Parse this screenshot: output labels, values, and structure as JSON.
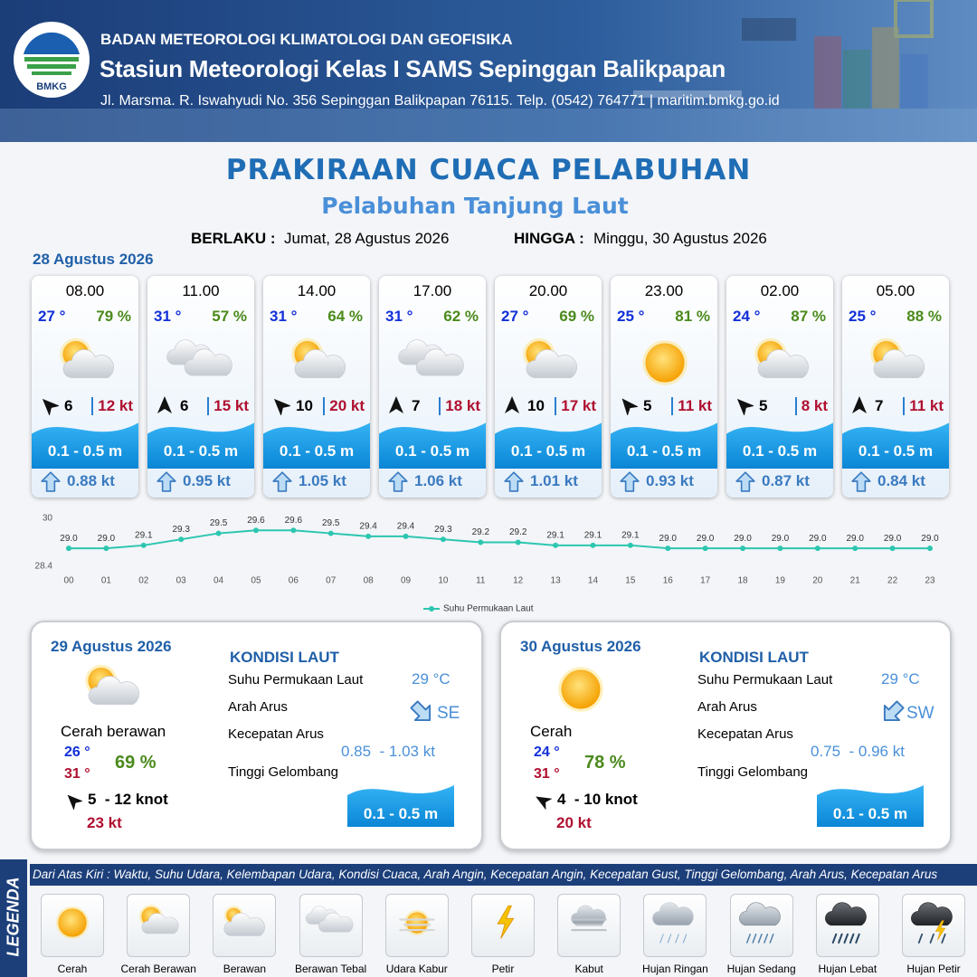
{
  "header": {
    "logo_text": "BMKG",
    "agency": "BADAN METEOROLOGI KLIMATOLOGI DAN GEOFISIKA",
    "station": "Stasiun Meteorologi Kelas I SAMS Sepinggan Balikpapan",
    "address": "Jl. Marsma. R. Iswahyudi No. 356 Sepinggan Balikpapan 76115. Telp. (0542) 764771 | maritim.bmkg.go.id"
  },
  "title": "PRAKIRAAN CUACA PELABUHAN",
  "subtitle": "Pelabuhan Tanjung Laut",
  "validity": {
    "from_label": "BERLAKU :",
    "from": "Jumat, 28 Agustus 2026",
    "to_label": "HINGGA :",
    "to": "Minggu, 30 Agustus 2026"
  },
  "day1": {
    "date": "28 Agustus 2026",
    "cards": [
      {
        "time": "08.00",
        "temp": "27 °",
        "humidity": "79 %",
        "icon": "cerah-berawan",
        "wind_direction": 315,
        "wind_speed": 6,
        "gust": "12 kt",
        "wave": "0.1 - 0.5 m",
        "current": "0.88 kt"
      },
      {
        "time": "11.00",
        "temp": "31 °",
        "humidity": "57 %",
        "icon": "berawan-tebal",
        "wind_direction": 0,
        "wind_speed": 6,
        "gust": "15 kt",
        "wave": "0.1 - 0.5 m",
        "current": "0.95 kt"
      },
      {
        "time": "14.00",
        "temp": "31 °",
        "humidity": "64 %",
        "icon": "cerah-berawan",
        "wind_direction": 315,
        "wind_speed": 10,
        "gust": "20 kt",
        "wave": "0.1 - 0.5 m",
        "current": "1.05 kt"
      },
      {
        "time": "17.00",
        "temp": "31 °",
        "humidity": "62 %",
        "icon": "berawan-tebal",
        "wind_direction": 0,
        "wind_speed": 7,
        "gust": "18 kt",
        "wave": "0.1 - 0.5 m",
        "current": "1.06 kt"
      },
      {
        "time": "20.00",
        "temp": "27 °",
        "humidity": "69 %",
        "icon": "cerah-berawan",
        "wind_direction": 0,
        "wind_speed": 10,
        "gust": "17 kt",
        "wave": "0.1 - 0.5 m",
        "current": "1.01 kt"
      },
      {
        "time": "23.00",
        "temp": "25 °",
        "humidity": "81 %",
        "icon": "cerah",
        "wind_direction": 320,
        "wind_speed": 5,
        "gust": "11 kt",
        "wave": "0.1 - 0.5 m",
        "current": "0.93 kt"
      },
      {
        "time": "02.00",
        "temp": "24 °",
        "humidity": "87 %",
        "icon": "cerah-berawan",
        "wind_direction": 315,
        "wind_speed": 5,
        "gust": "8 kt",
        "wave": "0.1 - 0.5 m",
        "current": "0.87 kt"
      },
      {
        "time": "05.00",
        "temp": "25 °",
        "humidity": "88 %",
        "icon": "cerah-berawan",
        "wind_direction": 0,
        "wind_speed": 7,
        "gust": "11 kt",
        "wave": "0.1 - 0.5 m",
        "current": "0.84 kt"
      }
    ]
  },
  "chart_data": {
    "type": "line",
    "legend": "Suhu Permukaan Laut",
    "color": "#2cc6b0",
    "categories": [
      "00",
      "01",
      "02",
      "03",
      "04",
      "05",
      "06",
      "07",
      "08",
      "09",
      "10",
      "11",
      "12",
      "13",
      "14",
      "15",
      "16",
      "17",
      "18",
      "19",
      "20",
      "21",
      "22",
      "23"
    ],
    "values": [
      29,
      29,
      29.1,
      29.3,
      29.5,
      29.6,
      29.6,
      29.5,
      29.4,
      29.4,
      29.3,
      29.2,
      29.2,
      29.1,
      29.1,
      29.1,
      29,
      29,
      29,
      29,
      29,
      29,
      29,
      29
    ],
    "value_labels": [
      "29.0",
      "29.0",
      "29.1",
      "29.3",
      "29.5",
      "29.6",
      "29.6",
      "29.5",
      "29.4",
      "29.4",
      "29.3",
      "29.2",
      "29.2",
      "29.1",
      "29.1",
      "29.1",
      "29.0",
      "29.0",
      "29.0",
      "29.0",
      "29.0",
      "29.0",
      "29.0",
      "29.0"
    ],
    "ylim": [
      28.4,
      30
    ],
    "yticks": [
      28.4,
      30
    ],
    "grid": false
  },
  "days": [
    {
      "date": "29 Agustus 2026",
      "icon": "cerah-berawan",
      "condition": "Cerah berawan",
      "temp_min": "26 °",
      "temp_max": "31 °",
      "humidity": "69 %",
      "wind_direction": 315,
      "wind": "5  - 12 knot",
      "gust": "23 kt",
      "sea": {
        "heading": "KONDISI LAUT",
        "sst_label": "Suhu Permukaan Laut",
        "sst": "29 °C",
        "current_dir_label": "Arah Arus",
        "current_dir": "SE",
        "current_dir_deg": 135,
        "current_speed_label": "Kecepatan Arus",
        "current_speed": "0.85  - 1.03 kt",
        "wave_label": "Tinggi Gelombang",
        "wave": "0.1 - 0.5 m"
      }
    },
    {
      "date": "30 Agustus 2026",
      "icon": "cerah",
      "condition": "Cerah",
      "temp_min": "24 °",
      "temp_max": "31 °",
      "humidity": "78 %",
      "wind_direction": 300,
      "wind": "4  - 10 knot",
      "gust": "20 kt",
      "sea": {
        "heading": "KONDISI LAUT",
        "sst_label": "Suhu Permukaan Laut",
        "sst": "29 °C",
        "current_dir_label": "Arah Arus",
        "current_dir": "SW",
        "current_dir_deg": 225,
        "current_speed_label": "Kecepatan Arus",
        "current_speed": "0.75  - 0.96 kt",
        "wave_label": "Tinggi Gelombang",
        "wave": "0.1 - 0.5 m"
      }
    }
  ],
  "legend": {
    "label": "LEGENDA",
    "description": "Dari Atas Kiri : Waktu, Suhu Udara, Kelembapan Udara, Kondisi Cuaca, Arah Angin, Kecepatan Angin, Kecepatan Gust, Tinggi Gelombang, Arah Arus, Kecepatan Arus",
    "items": [
      {
        "name": "Cerah",
        "icon": "cerah"
      },
      {
        "name": "Cerah Berawan",
        "icon": "cerah-berawan"
      },
      {
        "name": "Berawan",
        "icon": "berawan"
      },
      {
        "name": "Berawan Tebal",
        "icon": "berawan-tebal"
      },
      {
        "name": "Udara Kabur",
        "icon": "udara-kabur"
      },
      {
        "name": "Petir",
        "icon": "petir"
      },
      {
        "name": "Kabut",
        "icon": "kabut"
      },
      {
        "name": "Hujan Ringan",
        "icon": "hujan-ringan"
      },
      {
        "name": "Hujan Sedang",
        "icon": "hujan-sedang"
      },
      {
        "name": "Hujan Lebat",
        "icon": "hujan-lebat"
      },
      {
        "name": "Hujan Petir",
        "icon": "hujan-petir"
      }
    ]
  }
}
